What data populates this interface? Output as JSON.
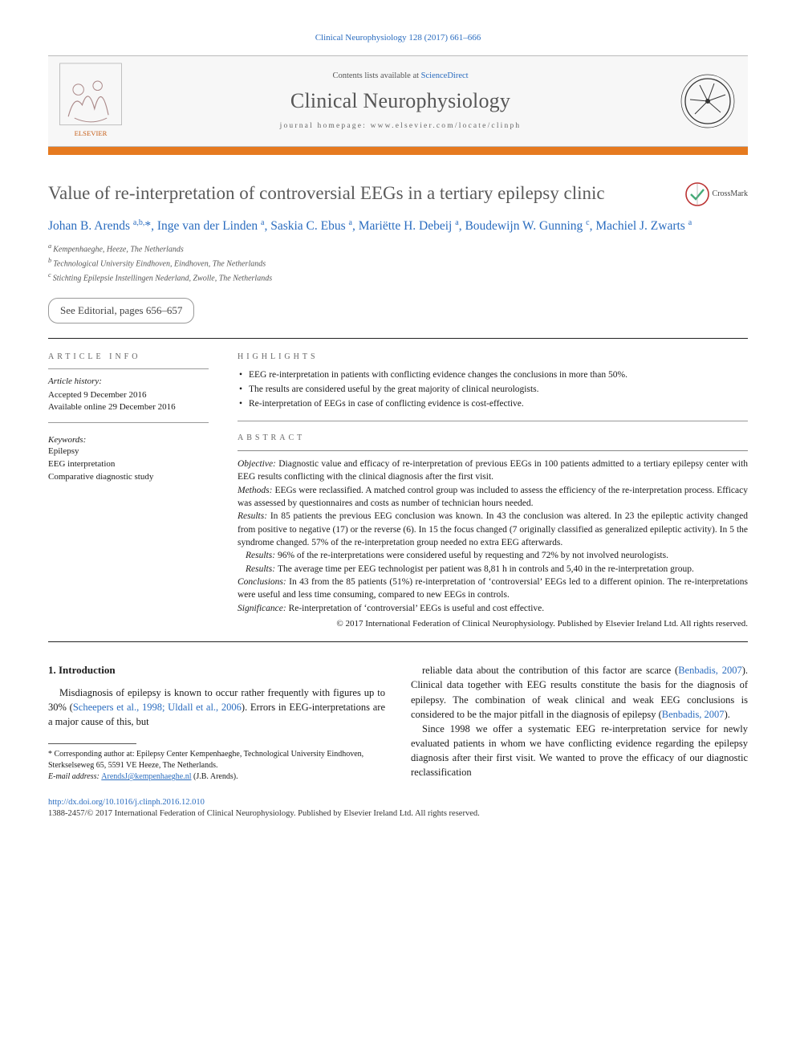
{
  "citation": "Clinical Neurophysiology 128 (2017) 661–666",
  "header": {
    "contents_prefix": "Contents lists available at ",
    "contents_link": "ScienceDirect",
    "journal_name": "Clinical Neurophysiology",
    "homepage_prefix": "journal homepage: ",
    "homepage_url": "www.elsevier.com/locate/clinph",
    "publisher_name": "ELSEVIER"
  },
  "colors": {
    "accent_bar": "#e67a1f",
    "link": "#2a6cbf",
    "heading_gray": "#5a5a5a"
  },
  "title": "Value of re-interpretation of controversial EEGs in a tertiary epilepsy clinic",
  "crossmark_label": "CrossMark",
  "authors_html": "Johan B. Arends <sup>a,b,</sup>*, Inge van der Linden <sup>a</sup>, Saskia C. Ebus <sup>a</sup>, Mariëtte H. Debeij <sup>a</sup>, Boudewijn W. Gunning <sup>c</sup>, Machiel J. Zwarts <sup>a</sup>",
  "affiliations": [
    "a Kempenhaeghe, Heeze, The Netherlands",
    "b Technological University Eindhoven, Eindhoven, The Netherlands",
    "c Stichting Epilepsie Instellingen Nederland, Zwolle, The Netherlands"
  ],
  "editorial": "See Editorial, pages 656–657",
  "article_info": {
    "heading": "ARTICLE INFO",
    "history_label": "Article history:",
    "accepted": "Accepted 9 December 2016",
    "online": "Available online 29 December 2016",
    "keywords_label": "Keywords:",
    "keywords": [
      "Epilepsy",
      "EEG interpretation",
      "Comparative diagnostic study"
    ]
  },
  "highlights": {
    "heading": "HIGHLIGHTS",
    "items": [
      "EEG re-interpretation in patients with conflicting evidence changes the conclusions in more than 50%.",
      "The results are considered useful by the great majority of clinical neurologists.",
      "Re-interpretation of EEGs in case of conflicting evidence is cost-effective."
    ]
  },
  "abstract": {
    "heading": "ABSTRACT",
    "objective": "Diagnostic value and efficacy of re-interpretation of previous EEGs in 100 patients admitted to a tertiary epilepsy center with EEG results conflicting with the clinical diagnosis after the first visit.",
    "methods": "EEGs were reclassified. A matched control group was included to assess the efficiency of the re-interpretation process. Efficacy was assessed by questionnaires and costs as number of technician hours needed.",
    "results1": "In 85 patients the previous EEG conclusion was known. In 43 the conclusion was altered. In 23 the epileptic activity changed from positive to negative (17) or the reverse (6). In 15 the focus changed (7 originally classified as generalized epileptic activity). In 5 the syndrome changed. 57% of the re-interpretation group needed no extra EEG afterwards.",
    "results2": "96% of the re-interpretations were considered useful by requesting and 72% by not involved neurologists.",
    "results3": "The average time per EEG technologist per patient was 8,81 h in controls and 5,40 in the re-interpretation group.",
    "conclusions": "In 43 from the 85 patients (51%) re-interpretation of ‘controversial’ EEGs led to a different opinion. The re-interpretations were useful and less time consuming, compared to new EEGs in controls.",
    "significance": "Re-interpretation of ‘controversial’ EEGs is useful and cost effective.",
    "copyright": "© 2017 International Federation of Clinical Neurophysiology. Published by Elsevier Ireland Ltd. All rights reserved."
  },
  "intro": {
    "heading": "1. Introduction",
    "p1_a": "Misdiagnosis of epilepsy is known to occur rather frequently with figures up to 30% (",
    "p1_ref": "Scheepers et al., 1998; Uldall et al., 2006",
    "p1_b": "). Errors in EEG-interpretations are a major cause of this, but",
    "p2_a": "reliable data about the contribution of this factor are scarce (",
    "p2_ref1": "Benbadis, 2007",
    "p2_b": "). Clinical data together with EEG results constitute the basis for the diagnosis of epilepsy. The combination of weak clinical and weak EEG conclusions is considered to be the major pitfall in the diagnosis of epilepsy (",
    "p2_ref2": "Benbadis, 2007",
    "p2_c": ").",
    "p3": "Since 1998 we offer a systematic EEG re-interpretation service for newly evaluated patients in whom we have conflicting evidence regarding the epilepsy diagnosis after their first visit. We wanted to prove the efficacy of our diagnostic reclassification"
  },
  "footnote": {
    "corr": "* Corresponding author at: Epilepsy Center Kempenhaeghe, Technological University Eindhoven, Sterkselseweg 65, 5591 VE Heeze, The Netherlands.",
    "email_label": "E-mail address: ",
    "email": "ArendsJ@kempenhaeghe.nl",
    "email_suffix": " (J.B. Arends)."
  },
  "footer": {
    "doi": "http://dx.doi.org/10.1016/j.clinph.2016.12.010",
    "issn": "1388-2457/© 2017 International Federation of Clinical Neurophysiology. Published by Elsevier Ireland Ltd. All rights reserved."
  }
}
